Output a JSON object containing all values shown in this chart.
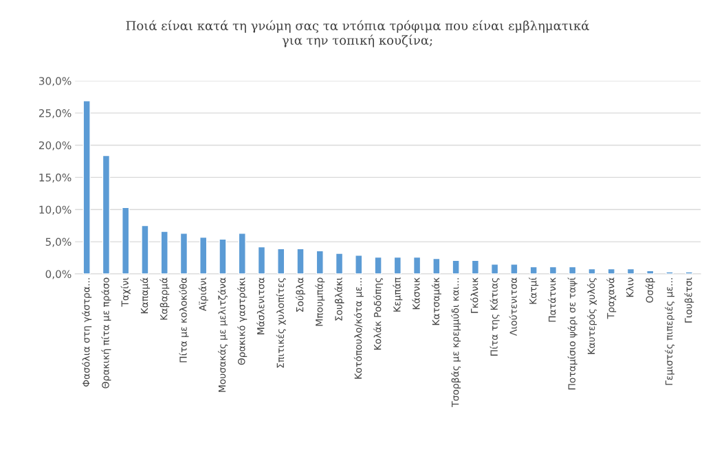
{
  "chart_data": {
    "type": "bar",
    "title": "Ποιά είναι κατά τη γνώμη σας τα ντόπια τρόφιμα που είναι εμβληματικά\nγια την τοπική κουζίνα;",
    "categories": [
      "Φασόλια στη γάστρα...",
      "Θρακική πίτα με πράσο",
      "Ταχίνι",
      "Καπαμά",
      "Καβαρμά",
      "Πίτα με κολοκύθα",
      "Αϊριάνι",
      "Μουσακάς με μελιτζάνα",
      "Θρακικό γαστράκι",
      "Μάσλενιτσα",
      "Σπιτικές χυλοπίτες",
      "Σούβλα",
      "Μπουμπάρ",
      "Σουβλάκι",
      "Κοτόπουλο/κότα με...",
      "Κολάκ Ροδόπης",
      "Κεμπάπ",
      "Κάσνικ",
      "Κατσαμάκ",
      "Τσορβάς με κρεμμύδι και...",
      "Γκόλνικ",
      "Πίτα της Κάτιας",
      "Λιούτενιτσα",
      "Κατμί",
      "Πατάτνικ",
      "Ποταμίσιο ψάρι σε ταψί",
      "Καυτερός χυλός",
      "Τραχανά",
      "Κλιν",
      "Οσάβ",
      "Γεμιστές πιπεριές με...",
      "Γιουβέτσι"
    ],
    "values": [
      26.9,
      18.4,
      10.3,
      7.5,
      6.6,
      6.3,
      5.7,
      5.4,
      6.3,
      4.2,
      3.9,
      3.9,
      3.6,
      3.2,
      2.9,
      2.6,
      2.6,
      2.6,
      2.4,
      2.1,
      2.1,
      1.5,
      1.5,
      1.1,
      1.1,
      1.1,
      0.8,
      0.8,
      0.8,
      0.5,
      0.3,
      0.3
    ],
    "color": "#5b9bd5",
    "ylim": [
      0,
      30
    ],
    "yticks": [
      {
        "value": 0,
        "label": "0,0%"
      },
      {
        "value": 5,
        "label": "5,0%"
      },
      {
        "value": 10,
        "label": "10,0%"
      },
      {
        "value": 15,
        "label": "15,0%"
      },
      {
        "value": 20,
        "label": "20,0%"
      },
      {
        "value": 25,
        "label": "25,0%"
      },
      {
        "value": 30,
        "label": "30,0%"
      }
    ],
    "grid": "y",
    "legend": false
  }
}
